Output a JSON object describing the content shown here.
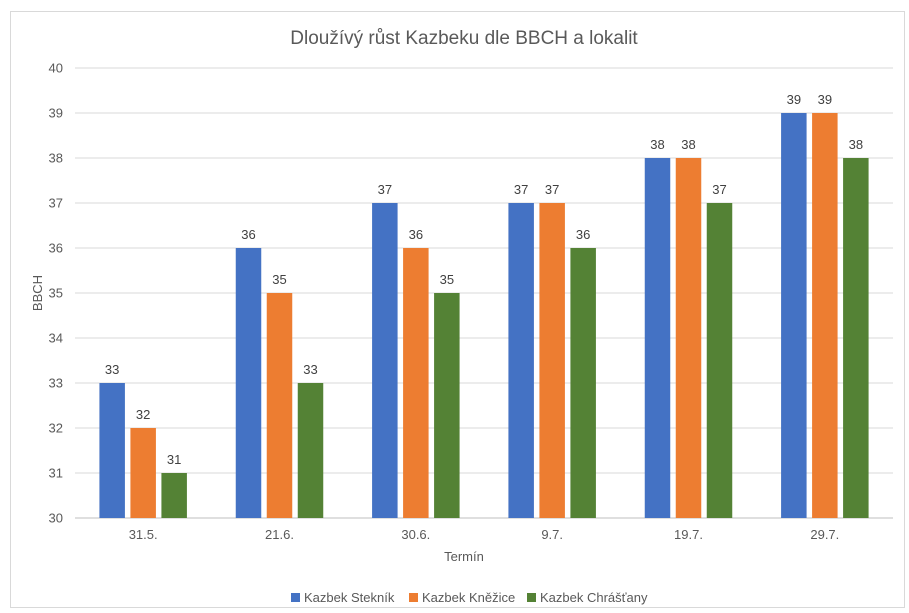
{
  "chart_data": {
    "type": "bar",
    "title": "Dloužívý růst Kazbeku dle BBCH a lokalit",
    "xlabel": "Termín",
    "ylabel": "BBCH",
    "categories": [
      "31.5.",
      "21.6.",
      "30.6.",
      "9.7.",
      "19.7.",
      "29.7."
    ],
    "ylim": [
      30,
      40
    ],
    "yticks": [
      "30",
      "31",
      "32",
      "33",
      "34",
      "35",
      "36",
      "37",
      "38",
      "39",
      "40"
    ],
    "grid": true,
    "legend_position": "bottom",
    "series": [
      {
        "name": "Kazbek Stekník",
        "color": "#4472c4",
        "values": [
          33,
          36,
          37,
          37,
          38,
          39
        ]
      },
      {
        "name": "Kazbek Kněžice",
        "color": "#ed7d31",
        "values": [
          32,
          35,
          36,
          37,
          38,
          39
        ]
      },
      {
        "name": "Kazbek Chrášťany",
        "color": "#548235",
        "values": [
          31,
          33,
          35,
          36,
          37,
          38
        ]
      }
    ]
  }
}
